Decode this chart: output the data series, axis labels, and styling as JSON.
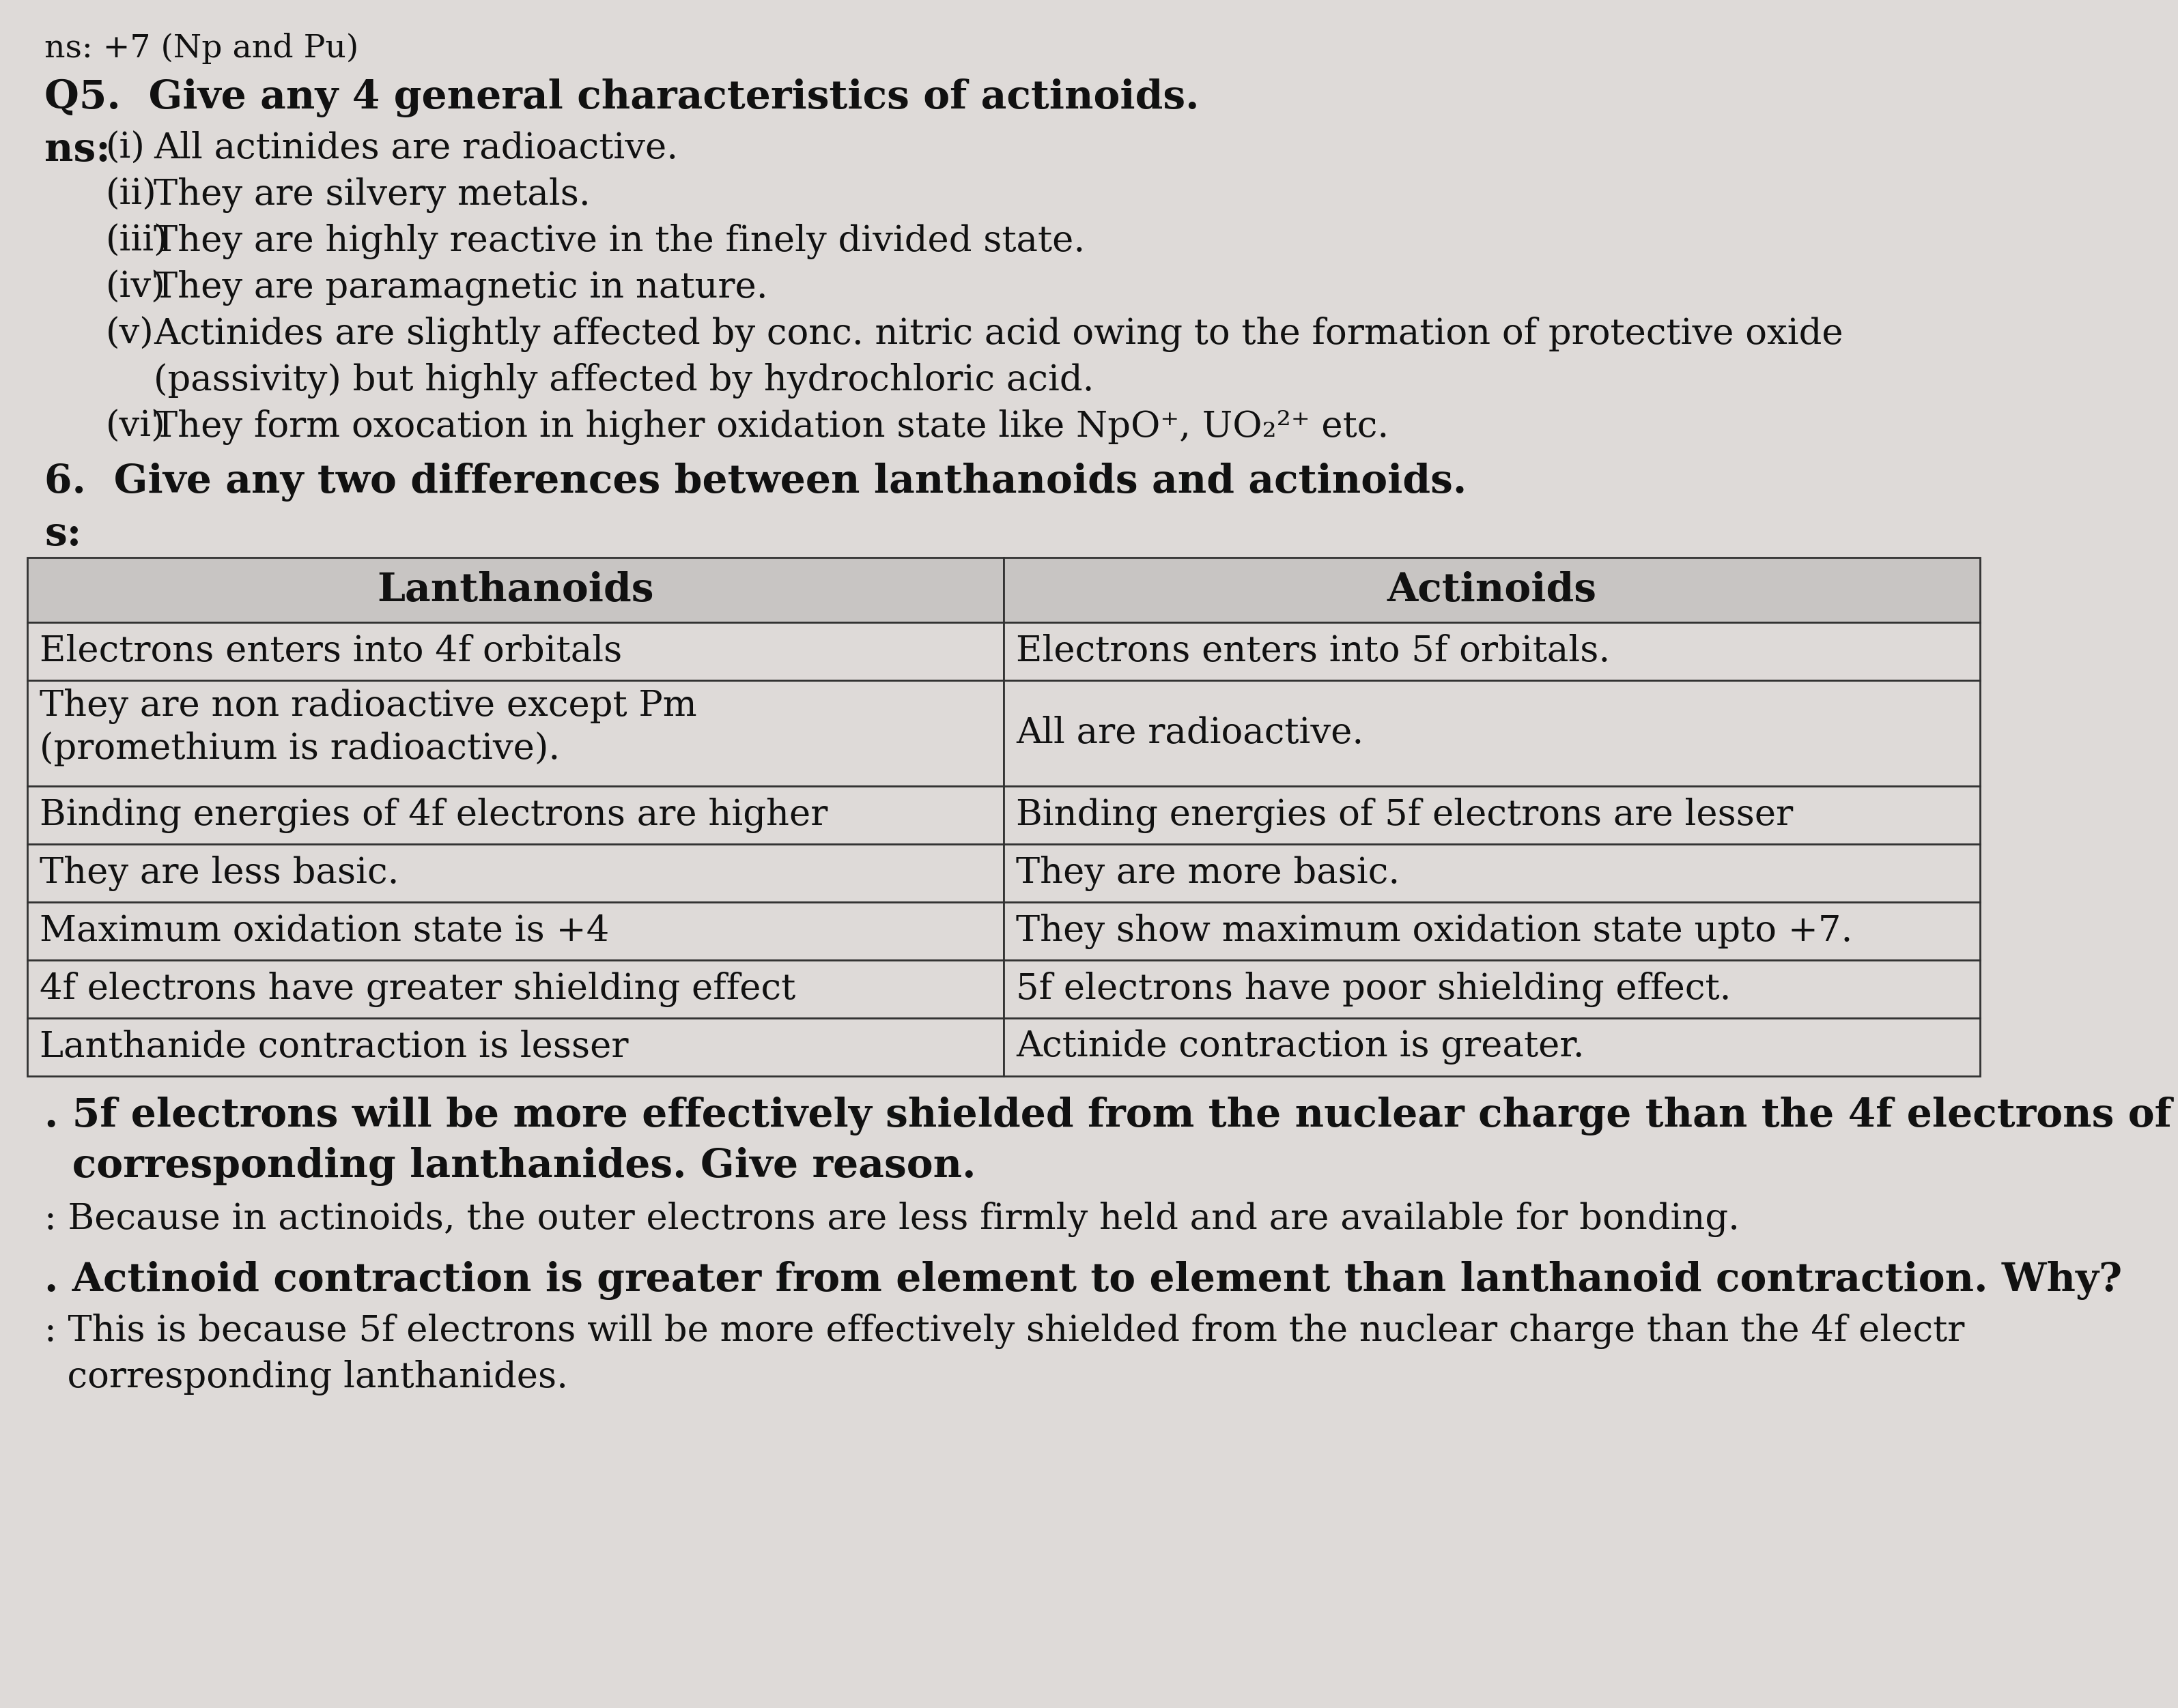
{
  "bg_color": "#dedad8",
  "text_color": "#111111",
  "title_top": "ns: +7 (Np and Pu)",
  "q5_heading": "Q5.  Give any 4 general characteristics of actinoids.",
  "ans_label": "ns:",
  "q5_points_left": [
    "(i)",
    "(ii)",
    "(iii)",
    "(iv)",
    "(v)",
    "",
    "(vi)"
  ],
  "q5_points_right": [
    "All actinides are radioactive.",
    "They are silvery metals.",
    "They are highly reactive in the finely divided state.",
    "They are paramagnetic in nature.",
    "Actinides are slightly affected by conc. nitric acid owing to the formation of protective oxide",
    "(passivity) but highly affected by hydrochloric acid.",
    "They form oxocation in higher oxidation state like NpO⁺, UO₂²⁺ etc."
  ],
  "q6_heading": "6.  Give any two differences between lanthanoids and actinoids.",
  "q6_ans_label": "s:",
  "table_headers": [
    "Lanthanoids",
    "Actinoids"
  ],
  "table_rows": [
    [
      "Electrons enters into 4f orbitals",
      "Electrons enters into 5f orbitals."
    ],
    [
      "They are non radioactive except Pm\n(promethium is radioactive).",
      "All are radioactive."
    ],
    [
      "Binding energies of 4f electrons are higher",
      "Binding energies of 5f electrons are lesser"
    ],
    [
      "They are less basic.",
      "They are more basic."
    ],
    [
      "Maximum oxidation state is +4",
      "They show maximum oxidation state upto +7."
    ],
    [
      "4f electrons have greater shielding effect",
      "5f electrons have poor shielding effect."
    ],
    [
      "Lanthanide contraction is lesser",
      "Actinide contraction is greater."
    ]
  ],
  "q7_heading_part1": ". 5f electrons will be more effectively shielded from the nuclear charge than the 4f electrons of",
  "q7_heading_part2": "  corresponding lanthanides. Give reason.",
  "q7_ans": ": Because in actinoids, the outer electrons are less firmly held and are available for bonding.",
  "q8_heading": ". Actinoid contraction is greater from element to element than lanthanoid contraction. Why?",
  "q8_ans_part1": ": This is because 5f electrons will be more effectively shielded from the nuclear charge than the 4f electr",
  "q8_ans_part2": "  corresponding lanthanides.",
  "font_size_body": 38,
  "font_size_heading": 40,
  "font_size_bold_heading": 42
}
